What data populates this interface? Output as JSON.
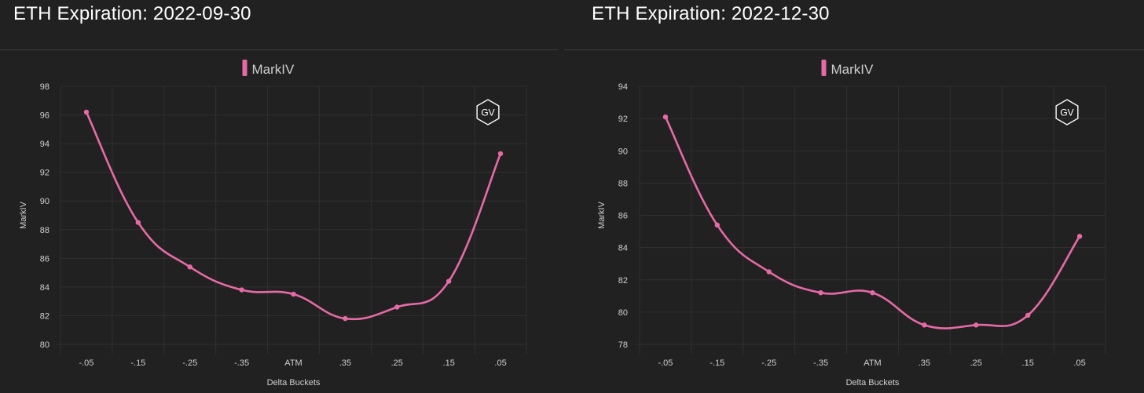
{
  "colors": {
    "background": "#212121",
    "series": "#e66aa6",
    "grid": "#303030",
    "text": "#cfcfcf",
    "title": "#ffffff"
  },
  "panels": [
    {
      "title": "ETH Expiration: 2022-09-30",
      "watermark": "GV"
    },
    {
      "title": "ETH Expiration: 2022-12-30",
      "watermark": "GV"
    }
  ],
  "chart_data": [
    {
      "type": "line",
      "title": "ETH Expiration: 2022-09-30",
      "xlabel": "Delta Buckets",
      "ylabel": "MarkIV",
      "legend": "top-center",
      "grid": true,
      "categories": [
        "-.05",
        "-.15",
        "-.25",
        "-.35",
        "ATM",
        ".35",
        ".25",
        ".15",
        ".05"
      ],
      "ylim": [
        80,
        98
      ],
      "yticks": [
        80,
        82,
        84,
        86,
        88,
        90,
        92,
        94,
        96,
        98
      ],
      "series": [
        {
          "name": "MarkIV",
          "values": [
            96.2,
            88.5,
            85.4,
            83.8,
            83.5,
            81.8,
            82.6,
            84.4,
            93.3
          ]
        }
      ]
    },
    {
      "type": "line",
      "title": "ETH Expiration: 2022-12-30",
      "xlabel": "Delta Buckets",
      "ylabel": "MarkIV",
      "legend": "top-center",
      "grid": true,
      "categories": [
        "-.05",
        "-.15",
        "-.25",
        "-.35",
        "ATM",
        ".35",
        ".25",
        ".15",
        ".05"
      ],
      "ylim": [
        78,
        94
      ],
      "yticks": [
        78,
        80,
        82,
        84,
        86,
        88,
        90,
        92,
        94
      ],
      "series": [
        {
          "name": "MarkIV",
          "values": [
            92.1,
            85.4,
            82.5,
            81.2,
            81.2,
            79.2,
            79.2,
            79.8,
            84.7
          ]
        }
      ]
    }
  ]
}
